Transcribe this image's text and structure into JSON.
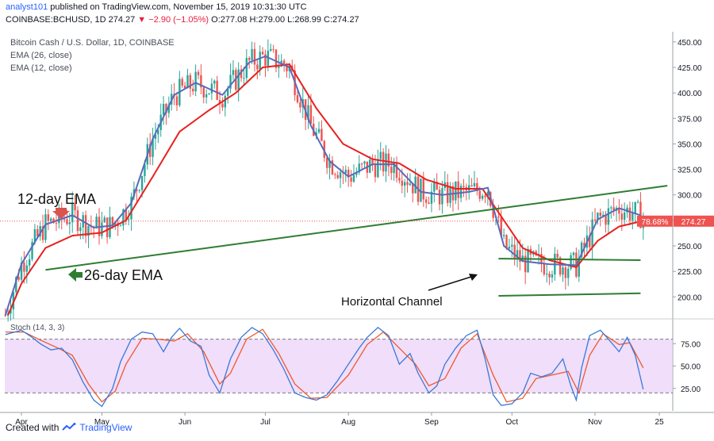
{
  "header": {
    "username": "analyst101",
    "published_text": "published on TradingView.com, November 15, 2019 10:31:30 UTC",
    "symbol_line": "COINBASE:BCHUSD, 1D 274.27",
    "change": "▼ −2.90 (−1.05%)",
    "ohlc": "O:277.08 H:279.00 L:268.99 C:274.27"
  },
  "legend": {
    "title": "Bitcoin Cash / U.S. Dollar, 1D, COINBASE",
    "ema26": "EMA (26, close)",
    "ema12": "EMA (12, close)"
  },
  "annotations": {
    "ema12_label": "12-day EMA",
    "ema26_label": "26-day EMA",
    "channel_label": "Horizontal Channel"
  },
  "price_badges": {
    "percent": "78.68%",
    "last": "274.27"
  },
  "footer": {
    "created_with": "Created with",
    "brand": "TradingView"
  },
  "colors": {
    "up": "#26a69a",
    "down": "#ef5350",
    "ema12": "#5b6ab8",
    "ema26": "#e8211f",
    "trendline": "#2e7d32",
    "stoch_k": "#3a78d8",
    "stoch_d": "#f0582e",
    "stoch_bg": "#e6c8f7"
  },
  "chart_data": [
    {
      "type": "candlestick",
      "title": "Bitcoin Cash / U.S. Dollar, 1D, COINBASE",
      "ylim": [
        180,
        460
      ],
      "y_ticks": [
        200,
        225,
        250,
        275,
        300,
        325,
        350,
        375,
        400,
        425,
        450
      ],
      "y_tick_labels": [
        "200.00",
        "225.00",
        "250.00",
        "275.00",
        "300.00",
        "325.00",
        "350.00",
        "375.00",
        "400.00",
        "425.00",
        "450.00"
      ],
      "x_labels": [
        "Apr",
        "May",
        "Jun",
        "Jul",
        "Aug",
        "Sep",
        "Oct",
        "Nov",
        "25"
      ],
      "x_label_dates": [
        "2019-04-01",
        "2019-05-01",
        "2019-06-01",
        "2019-07-01",
        "2019-08-01",
        "2019-09-01",
        "2019-10-01",
        "2019-11-01",
        "2019-11-25"
      ],
      "x_range": [
        "2019-03-24",
        "2019-11-30"
      ],
      "last_close": 274.27,
      "ema12_checkpoints": [
        [
          "2019-03-26",
          182
        ],
        [
          "2019-04-01",
          232
        ],
        [
          "2019-04-10",
          271
        ],
        [
          "2019-04-20",
          280
        ],
        [
          "2019-04-28",
          268
        ],
        [
          "2019-05-05",
          270
        ],
        [
          "2019-05-12",
          292
        ],
        [
          "2019-05-20",
          355
        ],
        [
          "2019-05-28",
          398
        ],
        [
          "2019-06-05",
          410
        ],
        [
          "2019-06-15",
          398
        ],
        [
          "2019-06-25",
          430
        ],
        [
          "2019-07-01",
          436
        ],
        [
          "2019-07-10",
          425
        ],
        [
          "2019-07-18",
          368
        ],
        [
          "2019-07-25",
          333
        ],
        [
          "2019-08-01",
          318
        ],
        [
          "2019-08-10",
          330
        ],
        [
          "2019-08-18",
          330
        ],
        [
          "2019-08-28",
          303
        ],
        [
          "2019-09-05",
          300
        ],
        [
          "2019-09-15",
          303
        ],
        [
          "2019-09-22",
          307
        ],
        [
          "2019-09-28",
          250
        ],
        [
          "2019-10-05",
          235
        ],
        [
          "2019-10-15",
          232
        ],
        [
          "2019-10-25",
          231
        ],
        [
          "2019-11-02",
          276
        ],
        [
          "2019-11-10",
          287
        ],
        [
          "2019-11-18",
          280
        ]
      ],
      "ema26_checkpoints": [
        [
          "2019-03-27",
          182
        ],
        [
          "2019-04-01",
          213
        ],
        [
          "2019-04-10",
          248
        ],
        [
          "2019-04-20",
          260
        ],
        [
          "2019-05-01",
          263
        ],
        [
          "2019-05-10",
          275
        ],
        [
          "2019-05-20",
          318
        ],
        [
          "2019-05-30",
          362
        ],
        [
          "2019-06-10",
          383
        ],
        [
          "2019-06-20",
          400
        ],
        [
          "2019-06-30",
          425
        ],
        [
          "2019-07-10",
          428
        ],
        [
          "2019-07-20",
          385
        ],
        [
          "2019-07-30",
          350
        ],
        [
          "2019-08-10",
          335
        ],
        [
          "2019-08-20",
          331
        ],
        [
          "2019-08-30",
          315
        ],
        [
          "2019-09-10",
          306
        ],
        [
          "2019-09-20",
          306
        ],
        [
          "2019-09-28",
          275
        ],
        [
          "2019-10-05",
          248
        ],
        [
          "2019-10-15",
          236
        ],
        [
          "2019-10-25",
          229
        ],
        [
          "2019-11-02",
          255
        ],
        [
          "2019-11-10",
          269
        ],
        [
          "2019-11-18",
          274
        ]
      ],
      "trendlines": [
        {
          "name": "rising-support",
          "from": [
            "2019-04-10",
            226.5
          ],
          "to": [
            "2019-11-28",
            309
          ]
        },
        {
          "name": "channel-top",
          "from": [
            "2019-09-26",
            237.5
          ],
          "to": [
            "2019-11-18",
            236
          ]
        },
        {
          "name": "channel-bottom",
          "from": [
            "2019-09-26",
            201
          ],
          "to": [
            "2019-11-18",
            203.5
          ]
        }
      ],
      "price_line": 274.27
    },
    {
      "type": "line",
      "title": "Stoch (14, 3, 3)",
      "ylim": [
        0,
        100
      ],
      "y_ticks": [
        25,
        50,
        75
      ],
      "y_tick_labels": [
        "25.00",
        "50.00",
        "75.00"
      ],
      "bands": [
        20,
        80
      ],
      "series": [
        {
          "name": "%K",
          "points": [
            [
              "2019-03-26",
              85
            ],
            [
              "2019-04-01",
              90
            ],
            [
              "2019-04-05",
              82
            ],
            [
              "2019-04-08",
              75
            ],
            [
              "2019-04-12",
              68
            ],
            [
              "2019-04-16",
              70
            ],
            [
              "2019-04-20",
              57
            ],
            [
              "2019-04-24",
              32
            ],
            [
              "2019-04-28",
              12
            ],
            [
              "2019-05-01",
              5
            ],
            [
              "2019-05-05",
              25
            ],
            [
              "2019-05-08",
              55
            ],
            [
              "2019-05-12",
              80
            ],
            [
              "2019-05-16",
              88
            ],
            [
              "2019-05-20",
              86
            ],
            [
              "2019-05-24",
              66
            ],
            [
              "2019-05-27",
              82
            ],
            [
              "2019-05-30",
              92
            ],
            [
              "2019-06-03",
              78
            ],
            [
              "2019-06-07",
              72
            ],
            [
              "2019-06-10",
              40
            ],
            [
              "2019-06-14",
              20
            ],
            [
              "2019-06-18",
              58
            ],
            [
              "2019-06-22",
              82
            ],
            [
              "2019-06-26",
              93
            ],
            [
              "2019-06-30",
              86
            ],
            [
              "2019-07-04",
              68
            ],
            [
              "2019-07-08",
              46
            ],
            [
              "2019-07-12",
              20
            ],
            [
              "2019-07-16",
              15
            ],
            [
              "2019-07-20",
              12
            ],
            [
              "2019-07-24",
              18
            ],
            [
              "2019-07-28",
              34
            ],
            [
              "2019-08-01",
              52
            ],
            [
              "2019-08-05",
              70
            ],
            [
              "2019-08-08",
              82
            ],
            [
              "2019-08-12",
              93
            ],
            [
              "2019-08-16",
              84
            ],
            [
              "2019-08-20",
              52
            ],
            [
              "2019-08-24",
              64
            ],
            [
              "2019-08-27",
              42
            ],
            [
              "2019-08-31",
              20
            ],
            [
              "2019-09-03",
              28
            ],
            [
              "2019-09-06",
              52
            ],
            [
              "2019-09-10",
              70
            ],
            [
              "2019-09-14",
              84
            ],
            [
              "2019-09-18",
              90
            ],
            [
              "2019-09-21",
              58
            ],
            [
              "2019-09-24",
              18
            ],
            [
              "2019-09-27",
              6
            ],
            [
              "2019-10-01",
              8
            ],
            [
              "2019-10-05",
              20
            ],
            [
              "2019-10-08",
              42
            ],
            [
              "2019-10-12",
              38
            ],
            [
              "2019-10-16",
              42
            ],
            [
              "2019-10-20",
              58
            ],
            [
              "2019-10-23",
              28
            ],
            [
              "2019-10-25",
              12
            ],
            [
              "2019-10-27",
              48
            ],
            [
              "2019-10-30",
              84
            ],
            [
              "2019-11-03",
              90
            ],
            [
              "2019-11-06",
              80
            ],
            [
              "2019-11-10",
              66
            ],
            [
              "2019-11-13",
              82
            ],
            [
              "2019-11-16",
              62
            ],
            [
              "2019-11-19",
              24
            ]
          ]
        },
        {
          "name": "%D",
          "points": [
            [
              "2019-03-26",
              88
            ],
            [
              "2019-04-02",
              88
            ],
            [
              "2019-04-08",
              79
            ],
            [
              "2019-04-14",
              71
            ],
            [
              "2019-04-20",
              62
            ],
            [
              "2019-04-26",
              30
            ],
            [
              "2019-05-01",
              10
            ],
            [
              "2019-05-06",
              22
            ],
            [
              "2019-05-10",
              52
            ],
            [
              "2019-05-16",
              81
            ],
            [
              "2019-05-22",
              80
            ],
            [
              "2019-05-28",
              78
            ],
            [
              "2019-06-02",
              86
            ],
            [
              "2019-06-08",
              66
            ],
            [
              "2019-06-14",
              30
            ],
            [
              "2019-06-18",
              42
            ],
            [
              "2019-06-24",
              80
            ],
            [
              "2019-06-30",
              91
            ],
            [
              "2019-07-06",
              64
            ],
            [
              "2019-07-12",
              30
            ],
            [
              "2019-07-18",
              14
            ],
            [
              "2019-07-24",
              15
            ],
            [
              "2019-08-01",
              40
            ],
            [
              "2019-08-08",
              74
            ],
            [
              "2019-08-14",
              88
            ],
            [
              "2019-08-20",
              70
            ],
            [
              "2019-08-26",
              52
            ],
            [
              "2019-08-31",
              28
            ],
            [
              "2019-09-06",
              36
            ],
            [
              "2019-09-12",
              70
            ],
            [
              "2019-09-18",
              86
            ],
            [
              "2019-09-24",
              40
            ],
            [
              "2019-09-29",
              10
            ],
            [
              "2019-10-05",
              14
            ],
            [
              "2019-10-10",
              36
            ],
            [
              "2019-10-16",
              40
            ],
            [
              "2019-10-22",
              44
            ],
            [
              "2019-10-26",
              20
            ],
            [
              "2019-10-30",
              62
            ],
            [
              "2019-11-04",
              86
            ],
            [
              "2019-11-10",
              74
            ],
            [
              "2019-11-14",
              76
            ],
            [
              "2019-11-19",
              48
            ]
          ]
        }
      ]
    }
  ]
}
